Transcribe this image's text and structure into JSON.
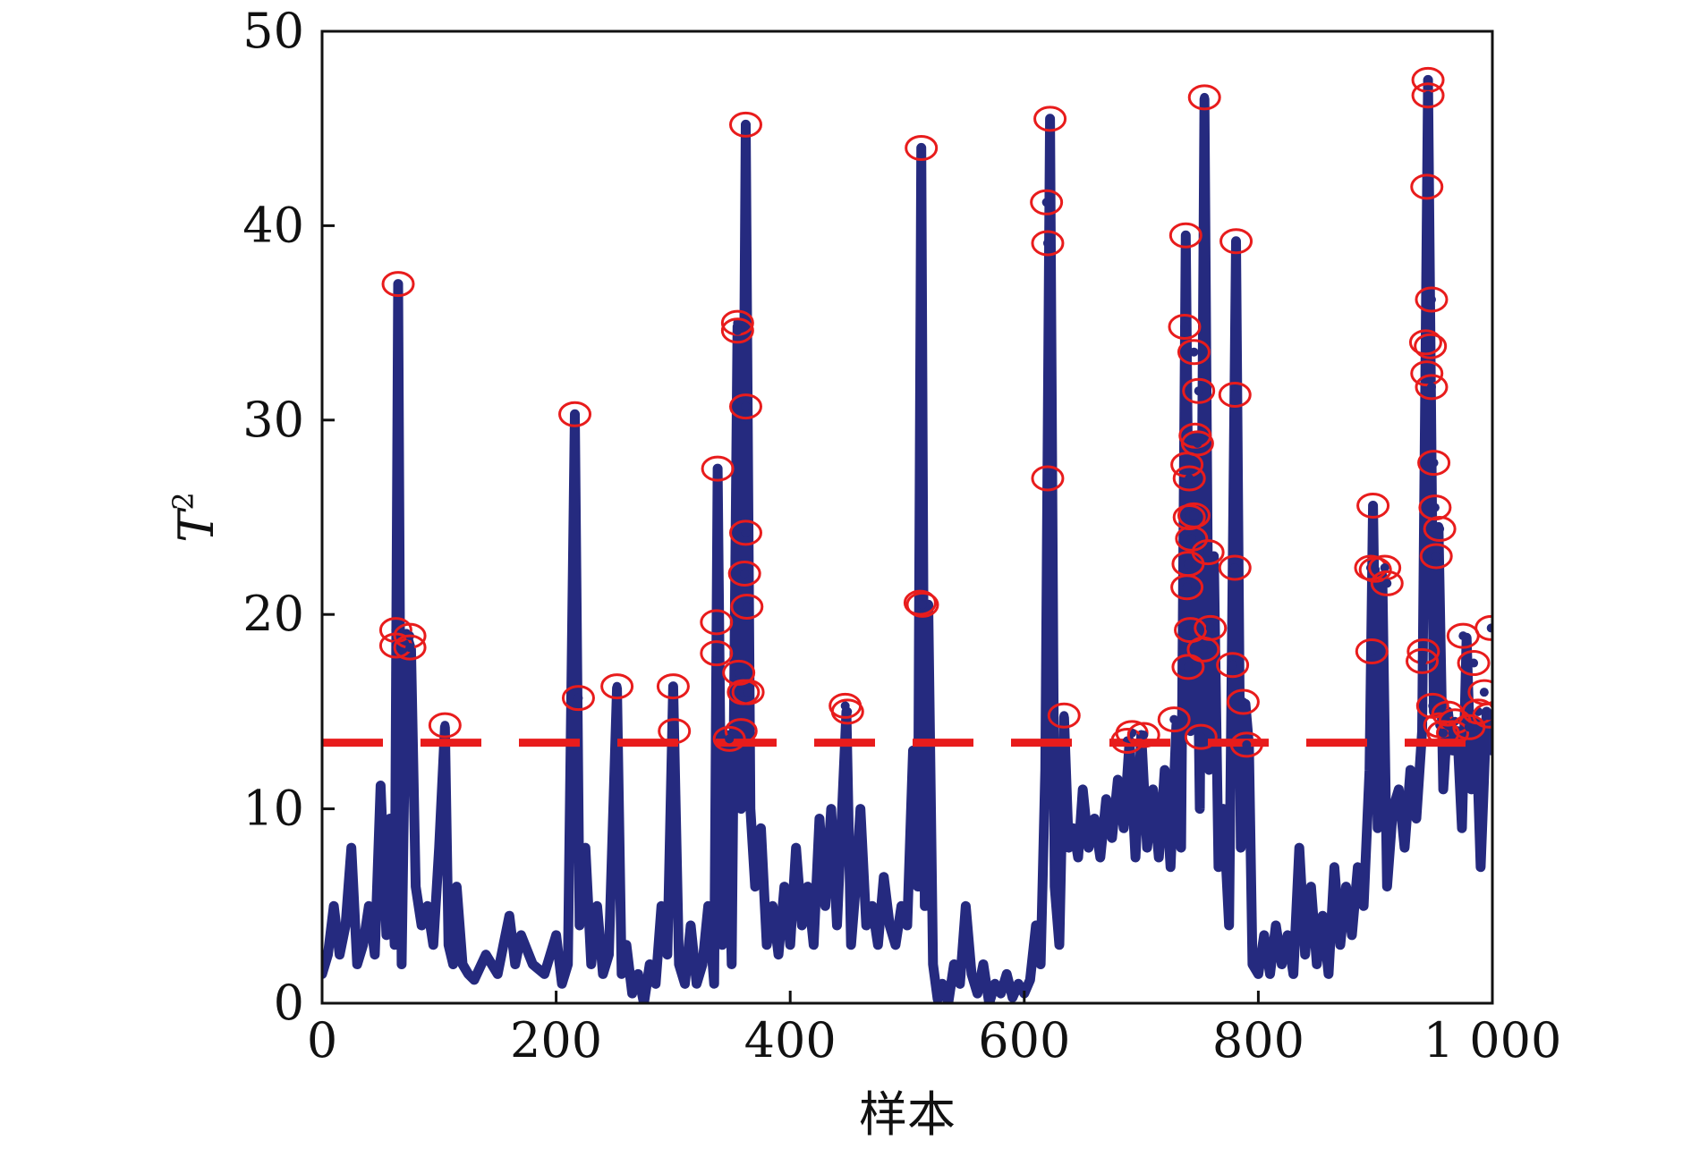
{
  "chart_data": {
    "type": "line",
    "xlabel": "样本",
    "ylabel_base": "T",
    "ylabel_sup": "2",
    "xlim": [
      0,
      1000
    ],
    "ylim": [
      0,
      50
    ],
    "x_ticks": [
      0,
      200,
      400,
      600,
      800,
      1000
    ],
    "x_tick_labels": [
      "0",
      "200",
      "400",
      "600",
      "800",
      "1 000"
    ],
    "y_ticks": [
      0,
      10,
      20,
      30,
      40,
      50
    ],
    "y_tick_labels": [
      "0",
      "10",
      "20",
      "30",
      "40",
      "50"
    ],
    "grid": false,
    "line_color": "#252a7f",
    "threshold": {
      "value": 13.4,
      "color": "#e81c1c",
      "style": "dashed"
    },
    "marker_color": "#e81c1c",
    "series": [
      {
        "points": [
          [
            0,
            1.5
          ],
          [
            5,
            2.5
          ],
          [
            10,
            5.0
          ],
          [
            15,
            2.5
          ],
          [
            20,
            4.0
          ],
          [
            25,
            8.0
          ],
          [
            30,
            2.0
          ],
          [
            35,
            3.0
          ],
          [
            40,
            5.0
          ],
          [
            45,
            2.5
          ],
          [
            50,
            11.2
          ],
          [
            55,
            3.5
          ],
          [
            58,
            9.5
          ],
          [
            62,
            3.0
          ],
          [
            65,
            37.0
          ],
          [
            68,
            2.0
          ],
          [
            72,
            19.0
          ],
          [
            76,
            18.2
          ],
          [
            80,
            6.0
          ],
          [
            85,
            4.0
          ],
          [
            90,
            5.0
          ],
          [
            95,
            3.0
          ],
          [
            100,
            8.0
          ],
          [
            105,
            14.2
          ],
          [
            108,
            3.0
          ],
          [
            112,
            2.0
          ],
          [
            115,
            6.0
          ],
          [
            120,
            2.0
          ],
          [
            125,
            1.5
          ],
          [
            130,
            1.2
          ],
          [
            140,
            2.5
          ],
          [
            150,
            1.5
          ],
          [
            155,
            3.0
          ],
          [
            160,
            4.5
          ],
          [
            165,
            2.0
          ],
          [
            170,
            3.5
          ],
          [
            180,
            2.0
          ],
          [
            190,
            1.5
          ],
          [
            200,
            3.5
          ],
          [
            205,
            1.0
          ],
          [
            210,
            2.0
          ],
          [
            216,
            30.3
          ],
          [
            220,
            4.0
          ],
          [
            225,
            8.0
          ],
          [
            230,
            2.0
          ],
          [
            235,
            5.0
          ],
          [
            240,
            1.5
          ],
          [
            245,
            2.5
          ],
          [
            252,
            16.2
          ],
          [
            256,
            1.5
          ],
          [
            260,
            3.0
          ],
          [
            265,
            0.5
          ],
          [
            270,
            1.5
          ],
          [
            275,
            0.0
          ],
          [
            280,
            2.0
          ],
          [
            285,
            1.0
          ],
          [
            290,
            5.0
          ],
          [
            295,
            2.5
          ],
          [
            300,
            16.3
          ],
          [
            305,
            2.0
          ],
          [
            310,
            1.0
          ],
          [
            315,
            4.0
          ],
          [
            320,
            1.0
          ],
          [
            325,
            2.0
          ],
          [
            330,
            5.0
          ],
          [
            335,
            1.0
          ],
          [
            338,
            27.5
          ],
          [
            342,
            3.0
          ],
          [
            346,
            13.8
          ],
          [
            350,
            2.0
          ],
          [
            355,
            34.8
          ],
          [
            358,
            10.0
          ],
          [
            362,
            45.2
          ],
          [
            366,
            10.0
          ],
          [
            370,
            6.0
          ],
          [
            375,
            9.0
          ],
          [
            380,
            3.0
          ],
          [
            385,
            5.0
          ],
          [
            390,
            2.5
          ],
          [
            395,
            6.0
          ],
          [
            400,
            3.0
          ],
          [
            405,
            8.0
          ],
          [
            410,
            4.0
          ],
          [
            415,
            6.0
          ],
          [
            420,
            3.0
          ],
          [
            425,
            9.5
          ],
          [
            430,
            5.0
          ],
          [
            435,
            10.0
          ],
          [
            440,
            4.0
          ],
          [
            448,
            15.0
          ],
          [
            452,
            3.0
          ],
          [
            456,
            6.0
          ],
          [
            460,
            10.0
          ],
          [
            465,
            4.0
          ],
          [
            470,
            5.0
          ],
          [
            475,
            3.0
          ],
          [
            480,
            6.5
          ],
          [
            485,
            4.0
          ],
          [
            490,
            3.0
          ],
          [
            495,
            5.0
          ],
          [
            500,
            4.0
          ],
          [
            505,
            13.0
          ],
          [
            509,
            6.0
          ],
          [
            512,
            44.0
          ],
          [
            515,
            5.0
          ],
          [
            518,
            20.5
          ],
          [
            522,
            2.0
          ],
          [
            526,
            0.2
          ],
          [
            530,
            1.0
          ],
          [
            535,
            0.0
          ],
          [
            540,
            2.0
          ],
          [
            545,
            1.0
          ],
          [
            550,
            5.0
          ],
          [
            555,
            1.5
          ],
          [
            560,
            0.5
          ],
          [
            565,
            2.0
          ],
          [
            570,
            0.0
          ],
          [
            575,
            1.0
          ],
          [
            580,
            0.5
          ],
          [
            585,
            1.5
          ],
          [
            590,
            0.3
          ],
          [
            595,
            1.0
          ],
          [
            600,
            0.5
          ],
          [
            605,
            1.2
          ],
          [
            610,
            4.0
          ],
          [
            614,
            2.0
          ],
          [
            618,
            12.0
          ],
          [
            622,
            45.5
          ],
          [
            626,
            6.0
          ],
          [
            630,
            3.0
          ],
          [
            634,
            14.7
          ],
          [
            638,
            8.0
          ],
          [
            642,
            9.0
          ],
          [
            646,
            7.5
          ],
          [
            650,
            11.0
          ],
          [
            655,
            8.0
          ],
          [
            660,
            9.5
          ],
          [
            665,
            7.5
          ],
          [
            670,
            10.5
          ],
          [
            675,
            8.5
          ],
          [
            680,
            11.5
          ],
          [
            685,
            9.0
          ],
          [
            690,
            13.5
          ],
          [
            695,
            7.5
          ],
          [
            700,
            13.8
          ],
          [
            705,
            8.0
          ],
          [
            710,
            11.0
          ],
          [
            715,
            7.5
          ],
          [
            720,
            12.0
          ],
          [
            725,
            7.0
          ],
          [
            730,
            14.3
          ],
          [
            734,
            8.0
          ],
          [
            738,
            39.5
          ],
          [
            742,
            14.0
          ],
          [
            746,
            29.0
          ],
          [
            750,
            10.0
          ],
          [
            754,
            46.5
          ],
          [
            758,
            12.0
          ],
          [
            762,
            23.0
          ],
          [
            766,
            7.0
          ],
          [
            770,
            10.0
          ],
          [
            775,
            4.0
          ],
          [
            781,
            39.2
          ],
          [
            785,
            8.0
          ],
          [
            789,
            15.4
          ],
          [
            792,
            13.3
          ],
          [
            795,
            2.0
          ],
          [
            800,
            1.5
          ],
          [
            805,
            3.5
          ],
          [
            810,
            1.5
          ],
          [
            815,
            4.0
          ],
          [
            820,
            2.0
          ],
          [
            825,
            3.5
          ],
          [
            830,
            1.5
          ],
          [
            835,
            8.0
          ],
          [
            840,
            2.5
          ],
          [
            845,
            6.0
          ],
          [
            850,
            2.0
          ],
          [
            855,
            4.5
          ],
          [
            860,
            1.5
          ],
          [
            865,
            7.0
          ],
          [
            870,
            3.0
          ],
          [
            875,
            6.0
          ],
          [
            880,
            3.5
          ],
          [
            885,
            7.0
          ],
          [
            890,
            5.0
          ],
          [
            895,
            12.0
          ],
          [
            898,
            25.6
          ],
          [
            902,
            9.0
          ],
          [
            906,
            22.0
          ],
          [
            910,
            6.0
          ],
          [
            915,
            10.0
          ],
          [
            920,
            11.0
          ],
          [
            925,
            8.0
          ],
          [
            930,
            12.0
          ],
          [
            935,
            9.5
          ],
          [
            940,
            14.0
          ],
          [
            945,
            47.5
          ],
          [
            950,
            15.0
          ],
          [
            954,
            24.5
          ],
          [
            958,
            11.0
          ],
          [
            962,
            15.0
          ],
          [
            966,
            13.0
          ],
          [
            970,
            14.0
          ],
          [
            974,
            9.0
          ],
          [
            978,
            18.8
          ],
          [
            982,
            11.0
          ],
          [
            986,
            14.5
          ],
          [
            990,
            7.0
          ],
          [
            995,
            15.0
          ],
          [
            1000,
            13.0
          ]
        ]
      }
    ],
    "flagged_points": [
      [
        65,
        37.0
      ],
      [
        63,
        19.2
      ],
      [
        63,
        18.4
      ],
      [
        75,
        18.9
      ],
      [
        75,
        18.3
      ],
      [
        105,
        14.3
      ],
      [
        216,
        30.3
      ],
      [
        219,
        15.7
      ],
      [
        252,
        16.3
      ],
      [
        300,
        16.3
      ],
      [
        301,
        14.0
      ],
      [
        338,
        27.5
      ],
      [
        337,
        19.6
      ],
      [
        337,
        18.0
      ],
      [
        355,
        35.0
      ],
      [
        355,
        34.6
      ],
      [
        356,
        17.0
      ],
      [
        360,
        16.0
      ],
      [
        358,
        14.0
      ],
      [
        348,
        13.6
      ],
      [
        362,
        45.2
      ],
      [
        362,
        30.7
      ],
      [
        362,
        24.2
      ],
      [
        361,
        22.1
      ],
      [
        363,
        20.4
      ],
      [
        364,
        16.0
      ],
      [
        447,
        15.3
      ],
      [
        449,
        15.0
      ],
      [
        512,
        44.0
      ],
      [
        511,
        20.6
      ],
      [
        513,
        20.5
      ],
      [
        622,
        45.5
      ],
      [
        619,
        41.2
      ],
      [
        620,
        39.1
      ],
      [
        620,
        27.0
      ],
      [
        634,
        14.8
      ],
      [
        688,
        13.5
      ],
      [
        692,
        13.9
      ],
      [
        702,
        13.8
      ],
      [
        728,
        14.6
      ],
      [
        738,
        39.5
      ],
      [
        737,
        34.8
      ],
      [
        739,
        27.7
      ],
      [
        741,
        27.0
      ],
      [
        740,
        22.6
      ],
      [
        739,
        21.4
      ],
      [
        741,
        25.0
      ],
      [
        743,
        23.9
      ],
      [
        742,
        19.2
      ],
      [
        740,
        17.3
      ],
      [
        746,
        29.2
      ],
      [
        748,
        28.8
      ],
      [
        745,
        25.1
      ],
      [
        745,
        33.5
      ],
      [
        749,
        31.5
      ],
      [
        751,
        13.7
      ],
      [
        754,
        46.6
      ],
      [
        757,
        23.2
      ],
      [
        759,
        19.3
      ],
      [
        753,
        18.2
      ],
      [
        781,
        39.2
      ],
      [
        780,
        31.3
      ],
      [
        780,
        22.4
      ],
      [
        778,
        17.4
      ],
      [
        787,
        15.5
      ],
      [
        790,
        13.3
      ],
      [
        898,
        25.6
      ],
      [
        896,
        22.4
      ],
      [
        900,
        22.3
      ],
      [
        908,
        22.4
      ],
      [
        910,
        21.6
      ],
      [
        897,
        18.1
      ],
      [
        945,
        47.5
      ],
      [
        945,
        46.7
      ],
      [
        944,
        42.0
      ],
      [
        948,
        36.2
      ],
      [
        943,
        34.0
      ],
      [
        947,
        33.8
      ],
      [
        944,
        32.4
      ],
      [
        948,
        31.7
      ],
      [
        950,
        27.8
      ],
      [
        951,
        25.5
      ],
      [
        955,
        24.4
      ],
      [
        952,
        23.0
      ],
      [
        941,
        18.1
      ],
      [
        940,
        17.6
      ],
      [
        949,
        15.3
      ],
      [
        955,
        14.3
      ],
      [
        962,
        14.9
      ],
      [
        968,
        14.5
      ],
      [
        966,
        13.9
      ],
      [
        975,
        18.9
      ],
      [
        984,
        17.5
      ],
      [
        988,
        15.0
      ],
      [
        993,
        16.0
      ],
      [
        997,
        14.8
      ],
      [
        999,
        19.3
      ],
      [
        980,
        14.2
      ],
      [
        958,
        13.9
      ]
    ]
  }
}
